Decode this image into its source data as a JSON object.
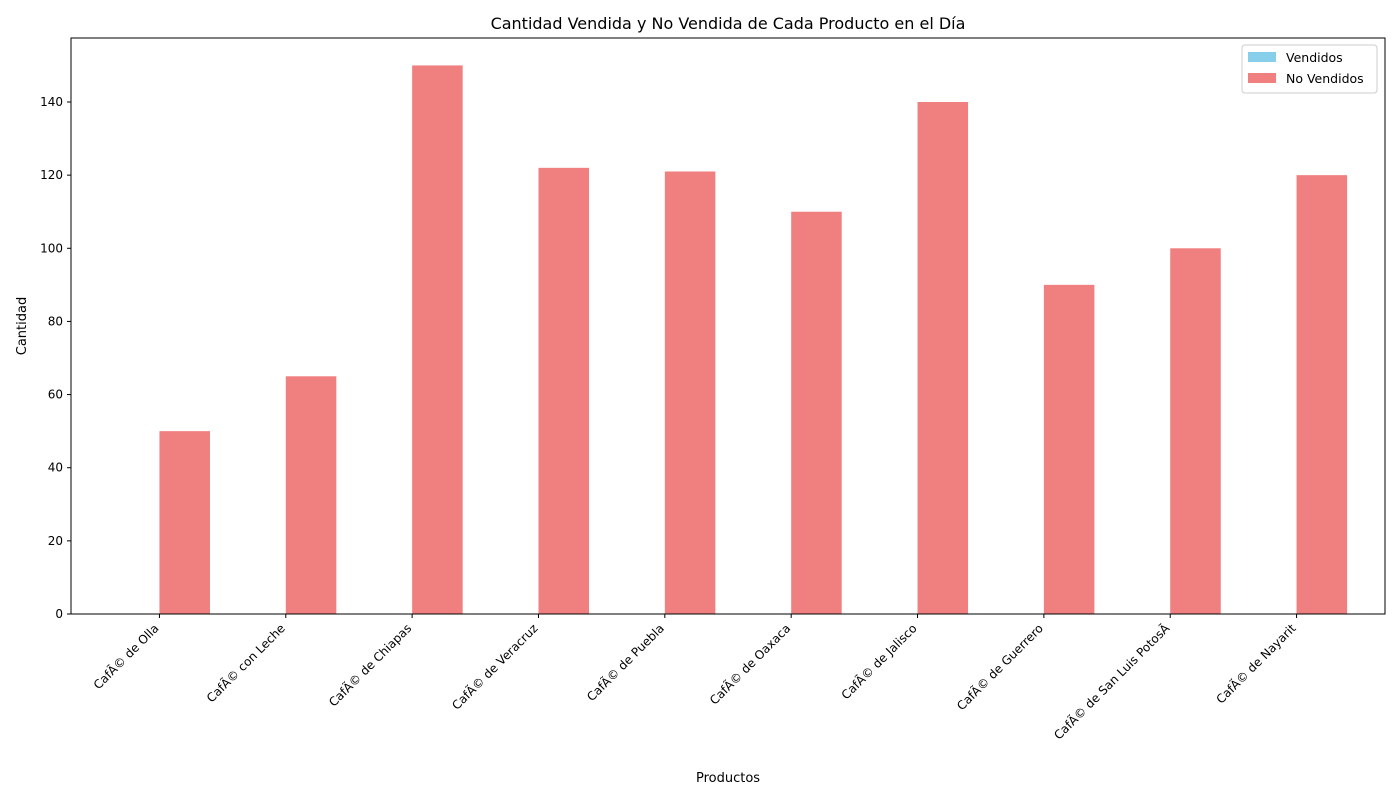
{
  "chart_data": {
    "type": "bar",
    "title": "Cantidad Vendida y No Vendida de Cada Producto en el Día",
    "xlabel": "Productos",
    "ylabel": "Cantidad",
    "categories": [
      "CafÃ© de Olla",
      "CafÃ© con Leche",
      "CafÃ© de Chiapas",
      "CafÃ© de Veracruz",
      "CafÃ© de Puebla",
      "CafÃ© de Oaxaca",
      "CafÃ© de Jalisco",
      "CafÃ© de Guerrero",
      "CafÃ© de San Luis PotosÃ­",
      "CafÃ© de Nayarit"
    ],
    "series": [
      {
        "name": "Vendidos",
        "color": "#87CEEB",
        "values": [
          0,
          0,
          0,
          0,
          0,
          0,
          0,
          0,
          0,
          0
        ]
      },
      {
        "name": "No Vendidos",
        "color": "#F08080",
        "values": [
          50,
          65,
          150,
          122,
          121,
          110,
          140,
          90,
          100,
          120
        ]
      }
    ],
    "ylim": [
      0,
      157.5
    ],
    "yticks": [
      0,
      20,
      40,
      60,
      80,
      100,
      120,
      140
    ],
    "grid": false,
    "legend": "top-right"
  }
}
